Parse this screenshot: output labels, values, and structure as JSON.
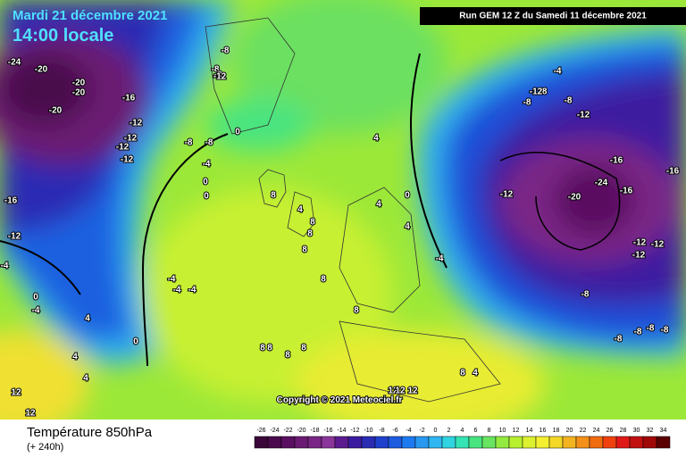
{
  "header": {
    "date": "Mardi 21 décembre 2021",
    "time": "14:00 locale",
    "run": "Run GEM 12 Z du Samedi 11 décembre 2021"
  },
  "copyright": "Copyright © 2021 Meteociel.fr",
  "footer": {
    "title": "Température 850hPa",
    "subtitle": "(+ 240h)"
  },
  "legend": {
    "ticks": [
      -26,
      -24,
      -22,
      -20,
      -18,
      -16,
      -14,
      -12,
      -10,
      -8,
      -6,
      -4,
      -2,
      0,
      2,
      4,
      6,
      8,
      10,
      12,
      14,
      16,
      18,
      20,
      22,
      24,
      26,
      28,
      30,
      32,
      34
    ],
    "colors": [
      "#3a0838",
      "#4a0a4c",
      "#5a1060",
      "#6a1a72",
      "#7a2686",
      "#8a369a",
      "#5c1c90",
      "#3c1ca0",
      "#2a2cb4",
      "#1e40cc",
      "#1e5ce0",
      "#1e7af0",
      "#2898f0",
      "#30b6f0",
      "#30d4e0",
      "#34e4b4",
      "#48e480",
      "#68e460",
      "#94ea40",
      "#b8f030",
      "#dcf030",
      "#f4f030",
      "#f4d828",
      "#f4b420",
      "#f49018",
      "#f06c10",
      "#f04010",
      "#e01818",
      "#c01010",
      "#a00808",
      "#5a0000"
    ]
  },
  "map_labels": [
    "-24",
    "-20",
    "-20",
    "-20",
    "-20",
    "-16",
    "-12",
    "-12",
    "-12",
    "-12",
    "-8",
    "-8",
    "-8",
    "-12",
    "-8",
    "-8",
    "-4",
    "0",
    "0",
    "0",
    "-4",
    "-16",
    "-12",
    "-4",
    "0",
    "-4",
    "-4",
    "-4",
    "0",
    "4",
    "8",
    "4",
    "8",
    "8",
    "8",
    "4",
    "4",
    "4",
    "8",
    "8",
    "8",
    "8",
    "8",
    "12",
    "12",
    "12",
    "4",
    "0",
    "4",
    "-4",
    "-4",
    "-8",
    "-8",
    "-8",
    "-12",
    "-16",
    "-16",
    "-20",
    "-24",
    "-16",
    "-12",
    "-12",
    "-12",
    "-12",
    "-8",
    "-8",
    "-8",
    "-8",
    "-8",
    "-12",
    "8",
    "8",
    "12",
    "12",
    "8",
    "4"
  ]
}
